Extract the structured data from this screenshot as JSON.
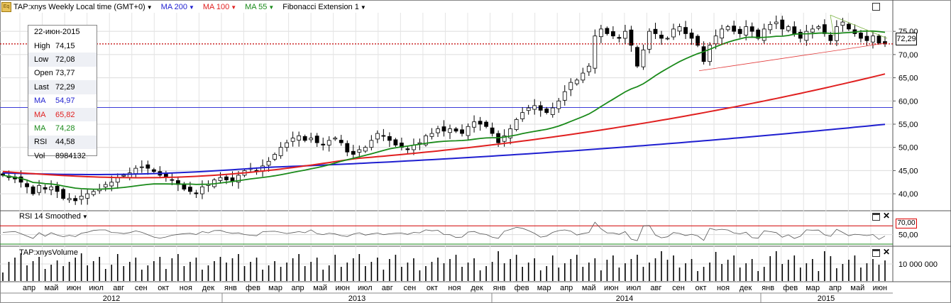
{
  "header": {
    "symbol_label": "TAP:xnys Weekly Local time (GMT+0)",
    "ma200_label": "MA 200",
    "ma100_label": "MA 100",
    "ma55_label": "MA 55",
    "fib_label": "Fibonacci Extension 1",
    "colors": {
      "ma200": "#1f1fd0",
      "ma100": "#e02020",
      "ma55": "#1a8a1a",
      "fib": "#000000"
    }
  },
  "info": {
    "date": "22-июн-2015",
    "rows": [
      {
        "key": "High",
        "value": "74,15",
        "color": "#000000"
      },
      {
        "key": "Low",
        "value": "72,08",
        "color": "#000000"
      },
      {
        "key": "Open",
        "value": "73,77",
        "color": "#000000"
      },
      {
        "key": "Last",
        "value": "72,29",
        "color": "#000000"
      },
      {
        "key": "MA",
        "value": "54,97",
        "color": "#1f1fd0"
      },
      {
        "key": "MA",
        "value": "65,82",
        "color": "#e02020"
      },
      {
        "key": "MA",
        "value": "74,28",
        "color": "#1a8a1a"
      },
      {
        "key": "RSI",
        "value": "44,58",
        "color": "#000000"
      },
      {
        "key": "Vol",
        "value": "8984132",
        "color": "#000000"
      }
    ]
  },
  "last_price_tag": "72,29",
  "rsi_panel": {
    "label": "RSI 14 Smoothed",
    "level_tag": "70,00",
    "ticks": [
      "50,00"
    ]
  },
  "volume_panel": {
    "label": "TAP:xnysVolume",
    "ticks": [
      "10 000 000"
    ]
  },
  "chart_data": {
    "type": "candlestick",
    "title": "TAP:xnys Weekly",
    "y_ticks": [
      "75,00",
      "70,00",
      "65,00",
      "60,00",
      "55,00",
      "50,00",
      "45,00",
      "40,00"
    ],
    "ylim": [
      36.5,
      79
    ],
    "months": [
      "апр",
      "май",
      "июн",
      "июл",
      "авг",
      "сен",
      "окт",
      "ноя",
      "дек",
      "янв",
      "фев",
      "мар",
      "апр",
      "май",
      "июн",
      "июл",
      "авг",
      "сен",
      "окт",
      "ноя",
      "дек",
      "янв",
      "фев",
      "мар",
      "апр",
      "май",
      "июн",
      "июл",
      "авг",
      "сен",
      "окт",
      "ноя",
      "дек",
      "янв",
      "фев",
      "мар",
      "апр",
      "май",
      "июн"
    ],
    "years": [
      "2012",
      "2013",
      "2014",
      "2015"
    ],
    "close_trend": [
      44.0,
      43.5,
      43.2,
      42.5,
      41.5,
      40.0,
      41.8,
      41.0,
      41.5,
      40.5,
      39.0,
      39.0,
      38.5,
      39.5,
      40.0,
      40.5,
      41.0,
      42.0,
      42.5,
      43.5,
      44.0,
      44.5,
      45.5,
      45.8,
      45.5,
      44.8,
      44.0,
      43.5,
      43.0,
      42.0,
      41.0,
      40.5,
      40.0,
      41.5,
      42.0,
      43.0,
      43.5,
      43.0,
      42.8,
      44.0,
      45.0,
      45.5,
      45.0,
      46.0,
      47.0,
      48.5,
      50.0,
      51.0,
      52.0,
      52.5,
      51.5,
      52.0,
      51.0,
      50.5,
      51.5,
      52.0,
      51.0,
      49.0,
      48.5,
      49.5,
      50.0,
      51.5,
      53.0,
      52.5,
      51.5,
      50.5,
      50.0,
      49.5,
      50.5,
      51.0,
      52.5,
      53.0,
      54.0,
      53.5,
      54.0,
      53.5,
      53.0,
      54.5,
      55.5,
      55.0,
      54.5,
      53.0,
      51.0,
      52.5,
      54.0,
      56.0,
      57.5,
      58.5,
      59.0,
      58.0,
      57.5,
      58.5,
      60.0,
      62.0,
      64.0,
      64.5,
      66.0,
      67.5,
      74.0,
      75.5,
      74.5,
      74.0,
      73.5,
      75.0,
      72.0,
      67.5,
      71.0,
      75.0,
      74.5,
      73.5,
      73.5,
      75.5,
      76.0,
      74.5,
      73.5,
      72.0,
      68.5,
      72.0,
      74.0,
      75.5,
      76.0,
      75.0,
      74.5,
      76.0,
      75.0,
      73.5,
      75.5,
      76.5,
      77.0,
      75.5,
      76.0,
      74.5,
      73.5,
      75.0,
      75.5,
      76.0,
      74.5,
      73.0,
      76.0,
      77.0,
      75.5,
      74.5,
      73.5,
      73.0,
      74.0,
      72.5,
      72.3
    ],
    "ma200_start": 44.5,
    "ma200_end": 54.97,
    "ma100_start": 44.8,
    "ma100_end": 65.82,
    "ma55_end": 74.28,
    "horizontal_line": 58.6,
    "rsi_level": 70,
    "volume_tick": 10000000
  }
}
